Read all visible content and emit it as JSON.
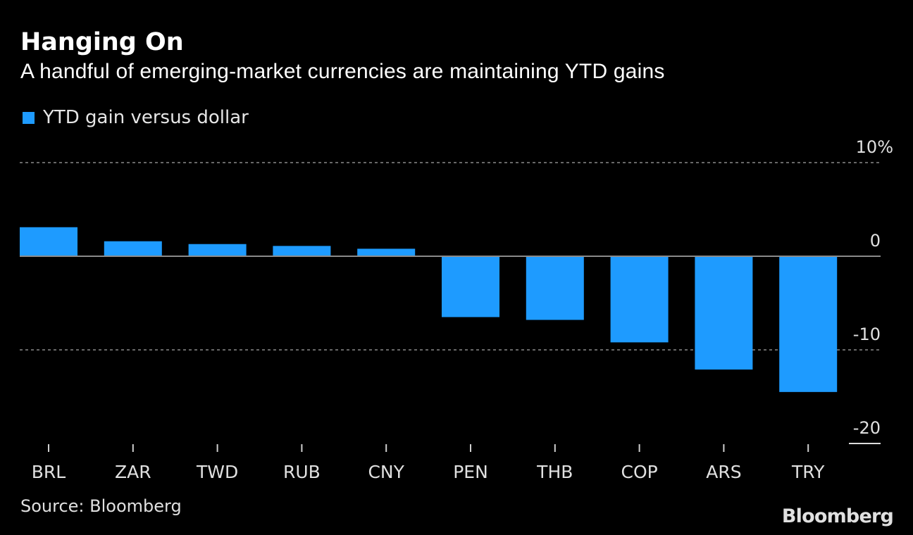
{
  "chart_data": {
    "type": "bar",
    "title": "Hanging On",
    "subtitle": "A handful of emerging-market currencies are maintaining YTD gains",
    "categories": [
      "BRL",
      "ZAR",
      "TWD",
      "RUB",
      "CNY",
      "PEN",
      "THB",
      "COP",
      "ARS",
      "TRY"
    ],
    "series": [
      {
        "name": "YTD gain versus dollar",
        "values": [
          3.1,
          1.6,
          1.3,
          1.1,
          0.8,
          -6.5,
          -6.8,
          -9.2,
          -12.1,
          -14.5
        ],
        "color": "#1e9bff"
      }
    ],
    "ylim": [
      -20,
      10
    ],
    "yticks": [
      10,
      0,
      -10,
      -20
    ],
    "ytick_labels": [
      "10%",
      "0",
      "-10",
      "-20"
    ],
    "xlabel": "",
    "ylabel": "",
    "grid": true,
    "legend": "top-left",
    "y_axis_position": "right"
  },
  "source": "Source: Bloomberg",
  "brand": "Bloomberg"
}
